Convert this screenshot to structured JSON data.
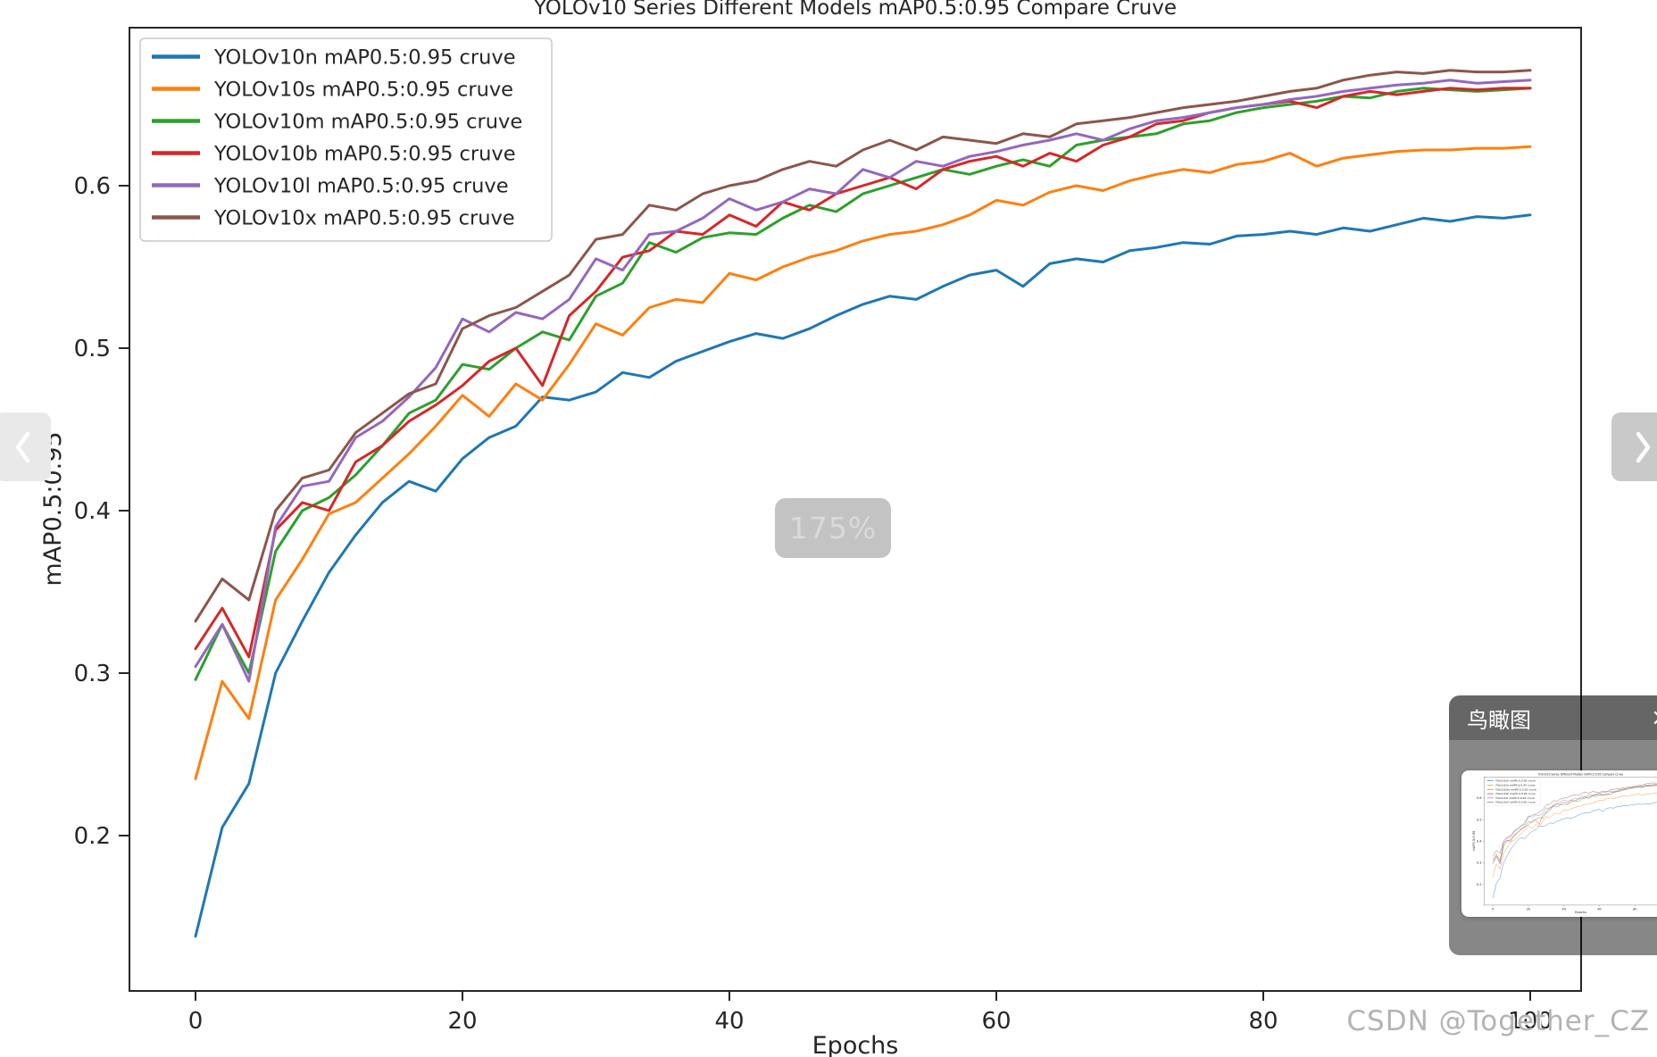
{
  "viewer": {
    "zoom_badge": "175%",
    "watermark": "CSDN @Together_CZ",
    "minimap": {
      "title": "鸟瞰图",
      "close_label": "×"
    },
    "icons": {
      "prev": "chevron-left",
      "next": "chevron-right",
      "close": "x"
    }
  },
  "chart_data": {
    "type": "line",
    "title": "YOLOv10 Series Different Models mAP0.5:0.95 Compare Cruve",
    "xlabel": "Epochs",
    "ylabel": "mAP0.5:0.95",
    "x_ticks": [
      0,
      20,
      40,
      60,
      80,
      100
    ],
    "y_ticks": [
      0.2,
      0.3,
      0.4,
      0.5,
      0.6
    ],
    "xlim": [
      -5,
      104
    ],
    "ylim": [
      0.104,
      0.697
    ],
    "grid": false,
    "legend_position": "upper left",
    "epochs": [
      0,
      2,
      4,
      6,
      8,
      10,
      12,
      14,
      16,
      18,
      20,
      22,
      24,
      26,
      28,
      30,
      32,
      34,
      36,
      38,
      40,
      42,
      44,
      46,
      48,
      50,
      52,
      54,
      56,
      58,
      60,
      62,
      64,
      66,
      68,
      70,
      72,
      74,
      76,
      78,
      80,
      82,
      84,
      86,
      88,
      90,
      92,
      94,
      96,
      98,
      100
    ],
    "series": [
      {
        "name": "YOLOv10n mAP0.5:0.95 cruve",
        "color": "#1f77b4",
        "values": [
          0.138,
          0.205,
          0.232,
          0.3,
          0.332,
          0.362,
          0.385,
          0.405,
          0.418,
          0.412,
          0.432,
          0.445,
          0.452,
          0.47,
          0.468,
          0.473,
          0.485,
          0.482,
          0.492,
          0.498,
          0.504,
          0.509,
          0.506,
          0.512,
          0.52,
          0.527,
          0.532,
          0.53,
          0.538,
          0.545,
          0.548,
          0.538,
          0.552,
          0.555,
          0.553,
          0.56,
          0.562,
          0.565,
          0.564,
          0.569,
          0.57,
          0.572,
          0.57,
          0.574,
          0.572,
          0.576,
          0.58,
          0.578,
          0.581,
          0.58,
          0.582
        ]
      },
      {
        "name": "YOLOv10s mAP0.5:0.95 cruve",
        "color": "#ff7f0e",
        "values": [
          0.235,
          0.295,
          0.272,
          0.345,
          0.37,
          0.398,
          0.405,
          0.42,
          0.435,
          0.452,
          0.471,
          0.458,
          0.478,
          0.468,
          0.49,
          0.515,
          0.508,
          0.525,
          0.53,
          0.528,
          0.546,
          0.542,
          0.55,
          0.556,
          0.56,
          0.566,
          0.57,
          0.572,
          0.576,
          0.582,
          0.591,
          0.588,
          0.596,
          0.6,
          0.597,
          0.603,
          0.607,
          0.61,
          0.608,
          0.613,
          0.615,
          0.62,
          0.612,
          0.617,
          0.619,
          0.621,
          0.622,
          0.622,
          0.623,
          0.623,
          0.624
        ]
      },
      {
        "name": "YOLOv10m mAP0.5:0.95 cruve",
        "color": "#2ca02c",
        "values": [
          0.296,
          0.33,
          0.3,
          0.375,
          0.4,
          0.408,
          0.422,
          0.44,
          0.46,
          0.468,
          0.49,
          0.487,
          0.5,
          0.51,
          0.505,
          0.532,
          0.54,
          0.565,
          0.559,
          0.568,
          0.571,
          0.57,
          0.58,
          0.588,
          0.584,
          0.595,
          0.6,
          0.605,
          0.61,
          0.607,
          0.612,
          0.616,
          0.612,
          0.625,
          0.628,
          0.63,
          0.632,
          0.638,
          0.64,
          0.645,
          0.648,
          0.65,
          0.652,
          0.655,
          0.654,
          0.658,
          0.66,
          0.659,
          0.658,
          0.659,
          0.66
        ]
      },
      {
        "name": "YOLOv10b mAP0.5:0.95 cruve",
        "color": "#d62728",
        "values": [
          0.315,
          0.34,
          0.31,
          0.388,
          0.405,
          0.4,
          0.43,
          0.44,
          0.455,
          0.465,
          0.477,
          0.492,
          0.5,
          0.477,
          0.52,
          0.535,
          0.556,
          0.56,
          0.572,
          0.57,
          0.582,
          0.575,
          0.59,
          0.585,
          0.595,
          0.6,
          0.605,
          0.598,
          0.61,
          0.615,
          0.618,
          0.612,
          0.62,
          0.615,
          0.625,
          0.63,
          0.638,
          0.64,
          0.645,
          0.648,
          0.65,
          0.652,
          0.648,
          0.655,
          0.658,
          0.656,
          0.658,
          0.66,
          0.659,
          0.66,
          0.66
        ]
      },
      {
        "name": "YOLOv10l mAP0.5:0.95 cruve",
        "color": "#9467bd",
        "values": [
          0.304,
          0.33,
          0.295,
          0.39,
          0.415,
          0.418,
          0.445,
          0.455,
          0.47,
          0.488,
          0.518,
          0.51,
          0.522,
          0.518,
          0.53,
          0.555,
          0.548,
          0.57,
          0.572,
          0.58,
          0.592,
          0.585,
          0.59,
          0.598,
          0.595,
          0.61,
          0.605,
          0.615,
          0.612,
          0.618,
          0.621,
          0.625,
          0.628,
          0.632,
          0.628,
          0.635,
          0.64,
          0.642,
          0.645,
          0.648,
          0.65,
          0.653,
          0.655,
          0.658,
          0.66,
          0.662,
          0.663,
          0.665,
          0.663,
          0.664,
          0.665
        ]
      },
      {
        "name": "YOLOv10x mAP0.5:0.95 cruve",
        "color": "#8c564b",
        "values": [
          0.332,
          0.358,
          0.345,
          0.4,
          0.42,
          0.425,
          0.448,
          0.46,
          0.472,
          0.478,
          0.512,
          0.52,
          0.525,
          0.535,
          0.545,
          0.567,
          0.57,
          0.588,
          0.585,
          0.595,
          0.6,
          0.603,
          0.61,
          0.615,
          0.612,
          0.622,
          0.628,
          0.622,
          0.63,
          0.628,
          0.626,
          0.632,
          0.63,
          0.638,
          0.64,
          0.642,
          0.645,
          0.648,
          0.65,
          0.652,
          0.655,
          0.658,
          0.66,
          0.665,
          0.668,
          0.67,
          0.669,
          0.671,
          0.67,
          0.67,
          0.671
        ]
      }
    ]
  }
}
